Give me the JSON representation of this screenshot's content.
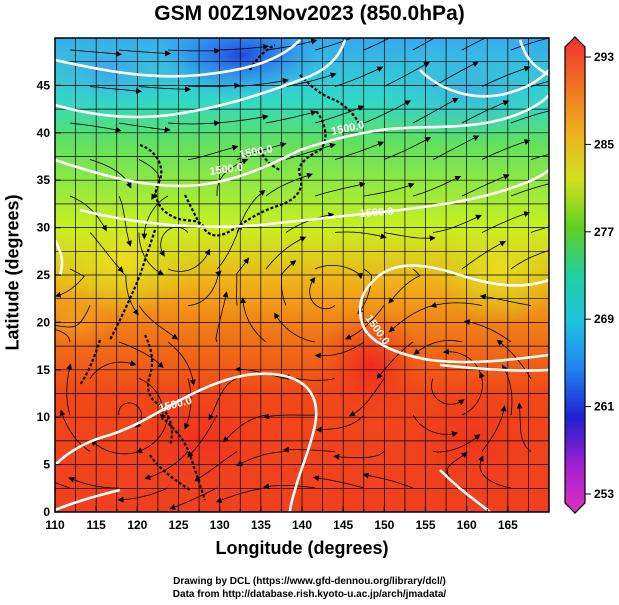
{
  "title": "GSM 00Z19Nov2023 (850.0hPa)",
  "map": {
    "xlabel": "Longitude (degrees)",
    "ylabel": "Latitude  (degrees)",
    "x_ticks": [
      "110",
      "115",
      "120",
      "125",
      "130",
      "135",
      "140",
      "145",
      "150",
      "155",
      "160",
      "165"
    ],
    "y_ticks": [
      "0",
      "5",
      "10",
      "15",
      "20",
      "25",
      "30",
      "35",
      "40",
      "45"
    ],
    "lon_range": [
      110,
      170
    ],
    "lat_range": [
      0,
      50
    ]
  },
  "colorbar": {
    "labels": [
      "293",
      "285",
      "277",
      "269",
      "261",
      "253"
    ],
    "range": [
      253,
      293
    ]
  },
  "contour_labels": [
    "1500.0",
    "1500.0",
    "1500.0",
    "1500.0",
    "1500.0",
    "1500.0"
  ],
  "credits": {
    "line1": "Drawing by DCL (https://www.gfd-dennou.org/library/dcl/)",
    "line2": "Data from http://database.rish.kyoto-u.ac.jp/arch/jmadata/"
  }
}
